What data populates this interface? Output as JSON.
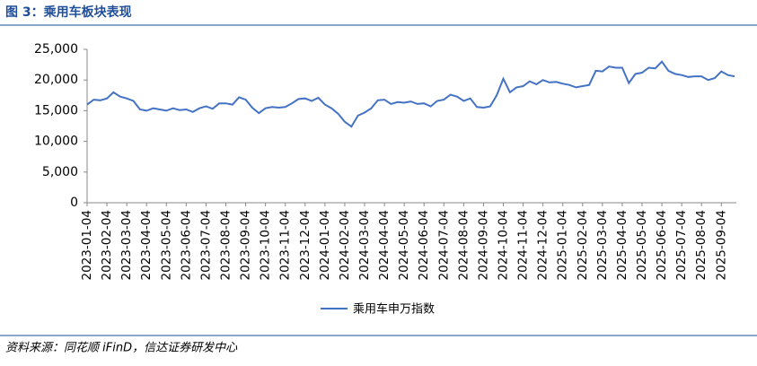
{
  "chart_data": {
    "type": "line",
    "title": "图 3：乘用车板块表现",
    "source": "资料来源：同花顺 iFinD，信达证券研发中心",
    "categories": [
      "2023-01-04",
      null,
      null,
      "2023-02-04",
      null,
      null,
      "2023-03-04",
      null,
      null,
      "2023-04-04",
      null,
      null,
      "2023-05-04",
      null,
      null,
      "2023-06-04",
      null,
      null,
      "2023-07-04",
      null,
      null,
      "2023-08-04",
      null,
      null,
      "2023-09-04",
      null,
      null,
      "2023-10-04",
      null,
      null,
      "2023-11-04",
      null,
      null,
      "2023-12-04",
      null,
      null,
      "2024-01-04",
      null,
      null,
      "2024-02-04",
      null,
      null,
      "2024-03-04",
      null,
      null,
      "2024-04-04",
      null,
      null,
      "2024-05-04",
      null,
      null,
      "2024-06-04",
      null,
      null,
      "2024-07-04",
      null,
      null,
      "2024-08-04",
      null,
      null,
      "2024-09-04",
      null,
      null,
      "2024-10-04",
      null,
      null,
      "2024-11-04",
      null,
      null,
      "2024-12-04",
      null,
      null,
      "2025-01-04",
      null,
      null,
      "2025-02-04",
      null,
      null,
      "2025-03-04",
      null,
      null,
      "2025-04-04",
      null,
      null,
      "2025-05-04",
      null,
      null,
      "2025-06-04",
      null,
      null,
      "2025-07-04",
      null,
      null,
      "2025-08-04",
      null,
      null,
      "2025-09-04",
      null,
      null
    ],
    "series": [
      {
        "name": "乘用车申万指数",
        "color": "#4472c4",
        "values": [
          16000,
          16800,
          16700,
          17000,
          18000,
          17300,
          17000,
          16600,
          15200,
          15000,
          15400,
          15200,
          15000,
          15400,
          15100,
          15200,
          14800,
          15400,
          15700,
          15300,
          16200,
          16200,
          16000,
          17200,
          16800,
          15500,
          14600,
          15400,
          15600,
          15500,
          15600,
          16200,
          16900,
          17000,
          16600,
          17100,
          16000,
          15400,
          14500,
          13200,
          12400,
          14200,
          14700,
          15400,
          16700,
          16800,
          16100,
          16400,
          16300,
          16500,
          16100,
          16200,
          15700,
          16600,
          16800,
          17600,
          17300,
          16600,
          17000,
          15600,
          15500,
          15700,
          17500,
          20200,
          18000,
          18800,
          19000,
          19800,
          19300,
          20000,
          19600,
          19700,
          19400,
          19200,
          18800,
          19000,
          19200,
          21500,
          21400,
          22200,
          22000,
          22000,
          19500,
          21000,
          21200,
          22000,
          21900,
          23000,
          21500,
          21000,
          20800,
          20500,
          20600,
          20600,
          20000,
          20300,
          21400,
          20800,
          20600
        ]
      }
    ],
    "ylim": [
      0,
      25000
    ],
    "yticks": [
      0,
      {
        "value": 5000,
        "label": "5,000"
      },
      {
        "value": 10000,
        "label": "10,000"
      },
      {
        "value": 15000,
        "label": "15,000"
      },
      {
        "value": 20000,
        "label": "20,000"
      },
      {
        "value": 25000,
        "label": "25,000"
      }
    ]
  }
}
